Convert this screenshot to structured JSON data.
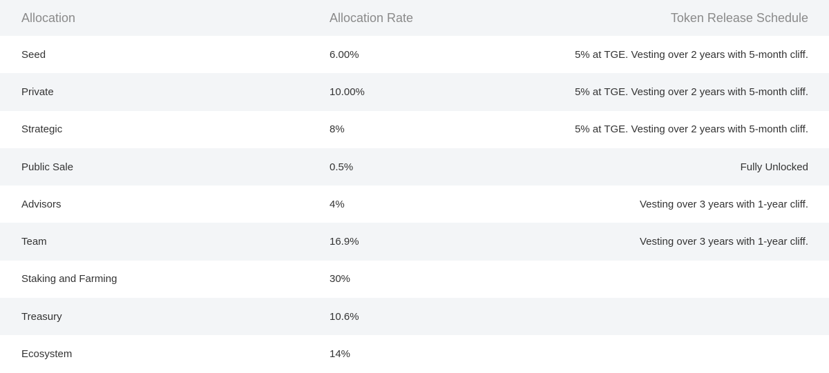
{
  "table": {
    "header": [
      "Allocation",
      "Allocation Rate",
      "Token Release Schedule"
    ],
    "rows": [
      [
        "Seed",
        "6.00%",
        "5% at TGE. Vesting over 2 years with 5-month cliff."
      ],
      [
        "Private",
        "10.00%",
        "5% at TGE. Vesting over 2 years with 5-month cliff."
      ],
      [
        "Strategic",
        "8%",
        "5% at TGE. Vesting over 2 years with 5-month cliff."
      ],
      [
        "Public Sale",
        "0.5%",
        "Fully Unlocked"
      ],
      [
        "Advisors",
        "4%",
        "Vesting over 3 years with 1-year cliff."
      ],
      [
        "Team",
        "16.9%",
        "Vesting over 3 years with 1-year cliff."
      ],
      [
        "Staking and Farming",
        "30%"
      ],
      [
        "Treasury",
        "10.6%"
      ],
      [
        "Ecosystem",
        "14%"
      ]
    ]
  }
}
